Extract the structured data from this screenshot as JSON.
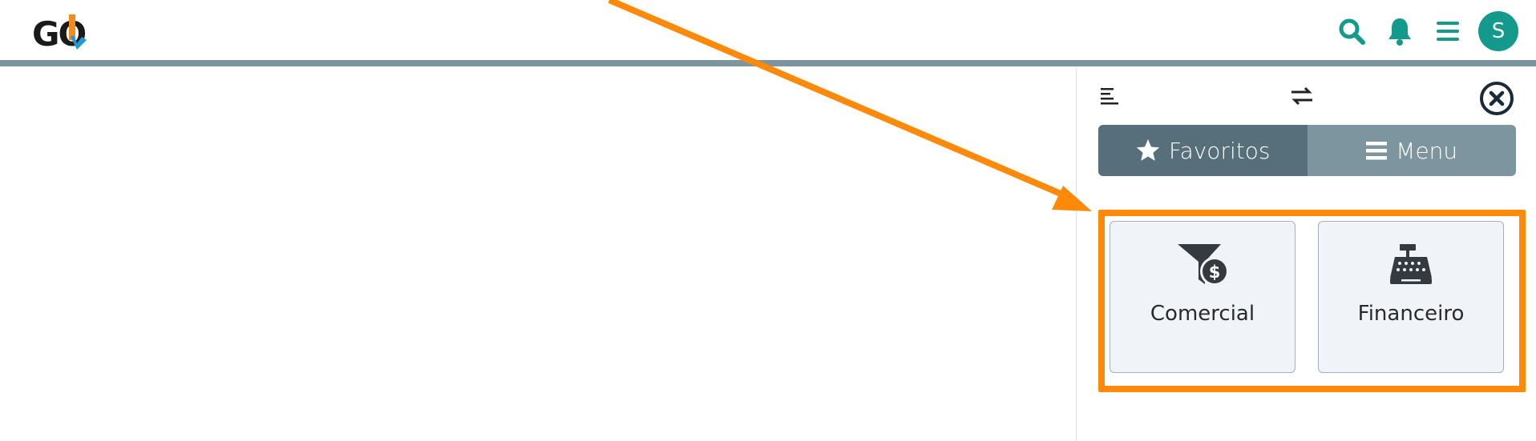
{
  "header": {
    "logo_text": "GO",
    "user_initial": "S",
    "icons": [
      "search-icon",
      "bell-icon",
      "hamburger-icon"
    ],
    "accent_color": "#14998d",
    "bar_color": "#7d959e"
  },
  "panel": {
    "tools": [
      "align-left-icon",
      "swap-icon",
      "close-circle-icon"
    ],
    "tabs": [
      {
        "label": "Favoritos",
        "icon": "star-icon",
        "active": true
      },
      {
        "label": "Menu",
        "icon": "list-icon",
        "active": false
      }
    ],
    "favorites": [
      {
        "label": "Comercial",
        "icon": "funnel-dollar-icon"
      },
      {
        "label": "Financeiro",
        "icon": "cash-register-icon"
      }
    ],
    "highlight_color": "#ff8a0a"
  }
}
